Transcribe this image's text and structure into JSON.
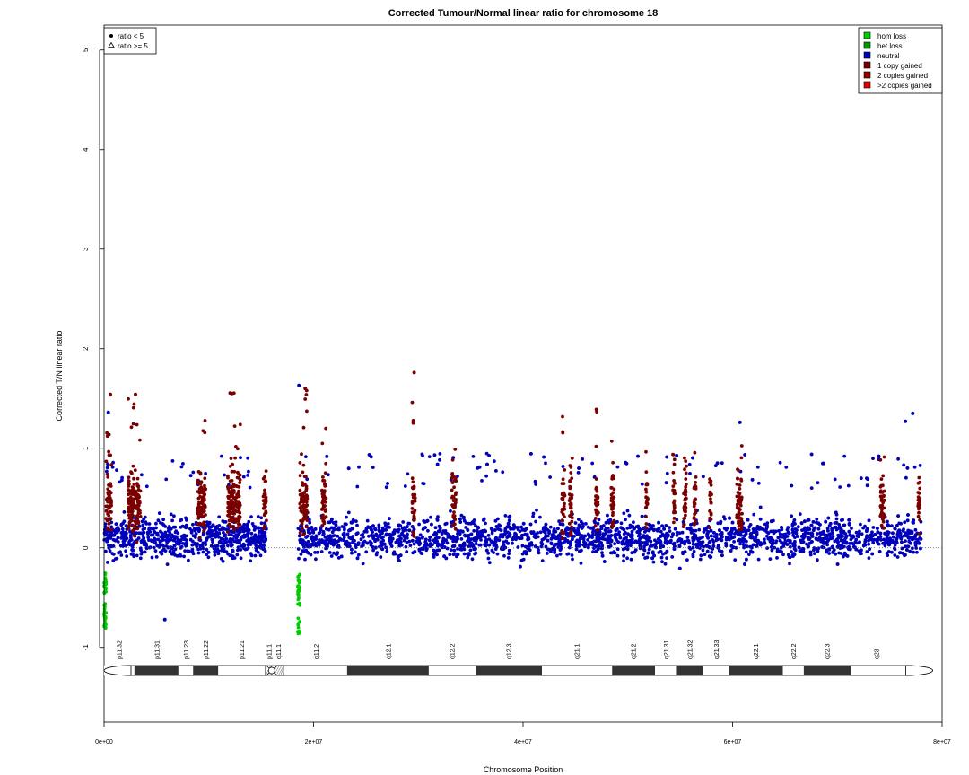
{
  "colors": {
    "hom_loss": "#00cc00",
    "het_loss": "#009900",
    "neutral": "#0000bb",
    "one_copy": "#7a0000",
    "two_copies": "#990000",
    "more_copies": "#dd0000",
    "band_dark": "#333333",
    "band_light": "#ffffff"
  },
  "chart_data": {
    "type": "scatter",
    "title": "Corrected Tumour/Normal linear ratio for chromosome  18",
    "xlabel": "Chromosome Position",
    "ylabel": "Corrected T/N linear ratio",
    "xlim": [
      0,
      80000000
    ],
    "ylim": [
      -1.75,
      5.25
    ],
    "x_ticks": [
      0,
      20000000,
      40000000,
      60000000,
      80000000
    ],
    "x_tick_labels": [
      "0e+00",
      "2e+07",
      "4e+07",
      "6e+07",
      "8e+07"
    ],
    "y_ticks": [
      -1,
      0,
      1,
      2,
      3,
      4,
      5
    ],
    "y_tick_labels": [
      "-1",
      "0",
      "1",
      "2",
      "3",
      "4",
      "5"
    ],
    "reference_line": 0,
    "legend_shape": {
      "position": "top-left",
      "entries": [
        {
          "symbol": "circle",
          "label": "ratio < 5"
        },
        {
          "symbol": "triangle",
          "label": "ratio >= 5"
        }
      ]
    },
    "legend_copy": {
      "position": "top-right",
      "entries": [
        {
          "label": "hom loss",
          "color_key": "hom_loss"
        },
        {
          "label": "het loss",
          "color_key": "het_loss"
        },
        {
          "label": "neutral",
          "color_key": "neutral"
        },
        {
          "label": "1 copy gained",
          "color_key": "one_copy"
        },
        {
          "label": "2 copies gained",
          "color_key": "two_copies"
        },
        {
          "label": ">2 copies gained",
          "color_key": "more_copies"
        }
      ]
    },
    "data_segments": [
      {
        "start": 0,
        "end": 15500000
      },
      {
        "start": 18500000,
        "end": 78000000
      }
    ],
    "neutral_range": {
      "low": -0.45,
      "high": 0.6,
      "dense_low": -0.3,
      "dense_high": 0.5
    },
    "gain_regions": [
      {
        "start": 200000,
        "end": 700000,
        "max": 1.3
      },
      {
        "start": 2300000,
        "end": 3500000,
        "max": 1.55
      },
      {
        "start": 8900000,
        "end": 9700000,
        "max": 1.4
      },
      {
        "start": 11800000,
        "end": 13000000,
        "max": 1.58
      },
      {
        "start": 15200000,
        "end": 15500000,
        "max": 0.8
      },
      {
        "start": 18700000,
        "end": 19400000,
        "max": 1.6
      },
      {
        "start": 20800000,
        "end": 21200000,
        "max": 1.33
      },
      {
        "start": 29400000,
        "end": 29700000,
        "max": 1.76
      },
      {
        "start": 33200000,
        "end": 33600000,
        "max": 1.0
      },
      {
        "start": 43700000,
        "end": 44000000,
        "max": 1.33
      },
      {
        "start": 44400000,
        "end": 44700000,
        "max": 1.1
      },
      {
        "start": 46900000,
        "end": 47200000,
        "max": 1.39
      },
      {
        "start": 48400000,
        "end": 48700000,
        "max": 1.1
      },
      {
        "start": 51700000,
        "end": 51900000,
        "max": 1.1
      },
      {
        "start": 54300000,
        "end": 54500000,
        "max": 1.0
      },
      {
        "start": 55300000,
        "end": 55600000,
        "max": 1.05
      },
      {
        "start": 56300000,
        "end": 56500000,
        "max": 1.0
      },
      {
        "start": 57800000,
        "end": 58000000,
        "max": 0.85
      },
      {
        "start": 60400000,
        "end": 60900000,
        "max": 1.1
      },
      {
        "start": 74100000,
        "end": 74500000,
        "max": 1.05
      },
      {
        "start": 77700000,
        "end": 77900000,
        "max": 0.8
      }
    ],
    "loss_regions": [
      {
        "start": 0,
        "end": 200000,
        "min": -0.82
      },
      {
        "start": 18500000,
        "end": 18700000,
        "min": -0.88
      }
    ],
    "outliers": [
      {
        "x": 600000,
        "y": 1.54,
        "color_key": "one_copy"
      },
      {
        "x": 3000000,
        "y": 1.54,
        "color_key": "one_copy"
      },
      {
        "x": 12200000,
        "y": 1.55,
        "color_key": "one_copy"
      },
      {
        "x": 19200000,
        "y": 1.6,
        "color_key": "one_copy"
      },
      {
        "x": 18600000,
        "y": 1.63,
        "color_key": "neutral"
      },
      {
        "x": 29600000,
        "y": 1.76,
        "color_key": "one_copy"
      },
      {
        "x": 47000000,
        "y": 1.39,
        "color_key": "one_copy"
      },
      {
        "x": 60700000,
        "y": 1.26,
        "color_key": "neutral"
      },
      {
        "x": 77200000,
        "y": 1.35,
        "color_key": "neutral"
      },
      {
        "x": 76500000,
        "y": 1.27,
        "color_key": "neutral"
      },
      {
        "x": 400000,
        "y": 1.36,
        "color_key": "neutral"
      },
      {
        "x": 5800000,
        "y": -0.72,
        "color_key": "neutral"
      }
    ],
    "ideogram": {
      "centromere_pos": 16000000,
      "p_arm": [
        {
          "name": "p11.32",
          "start": 0,
          "end": 2900000,
          "stain": "gneg"
        },
        {
          "name": "p11.31",
          "start": 2900000,
          "end": 7100000,
          "stain": "gpos"
        },
        {
          "name": "p11.23",
          "start": 7100000,
          "end": 8500000,
          "stain": "gneg"
        },
        {
          "name": "p11.22",
          "start": 8500000,
          "end": 10900000,
          "stain": "gpos"
        },
        {
          "name": "p11.21",
          "start": 10900000,
          "end": 15400000,
          "stain": "gneg"
        },
        {
          "name": "p11.1",
          "start": 15400000,
          "end": 16000000,
          "stain": "acen"
        }
      ],
      "q_arm": [
        {
          "name": "q11.1",
          "start": 16000000,
          "end": 17200000,
          "stain": "acen"
        },
        {
          "name": "q11.2",
          "start": 17200000,
          "end": 23200000,
          "stain": "gneg"
        },
        {
          "name": "q12.1",
          "start": 23200000,
          "end": 31000000,
          "stain": "gpos"
        },
        {
          "name": "q12.2",
          "start": 31000000,
          "end": 35500000,
          "stain": "gneg"
        },
        {
          "name": "q12.3",
          "start": 35500000,
          "end": 41800000,
          "stain": "gpos"
        },
        {
          "name": "q21.1",
          "start": 41800000,
          "end": 48500000,
          "stain": "gneg"
        },
        {
          "name": "q21.2",
          "start": 48500000,
          "end": 52600000,
          "stain": "gpos"
        },
        {
          "name": "q21.31",
          "start": 52600000,
          "end": 54600000,
          "stain": "gneg"
        },
        {
          "name": "q21.32",
          "start": 54600000,
          "end": 57200000,
          "stain": "gpos"
        },
        {
          "name": "q21.33",
          "start": 57200000,
          "end": 59700000,
          "stain": "gneg"
        },
        {
          "name": "q22.1",
          "start": 59700000,
          "end": 64800000,
          "stain": "gpos"
        },
        {
          "name": "q22.2",
          "start": 64800000,
          "end": 66800000,
          "stain": "gneg"
        },
        {
          "name": "q22.3",
          "start": 66800000,
          "end": 71300000,
          "stain": "gpos"
        },
        {
          "name": "q23",
          "start": 71300000,
          "end": 76100000,
          "stain": "gneg"
        }
      ],
      "label_positions": [
        {
          "name": "p11.32",
          "pos": 1400000
        },
        {
          "name": "p11.31",
          "pos": 5000000
        },
        {
          "name": "p11.23",
          "pos": 7800000
        },
        {
          "name": "p11.22",
          "pos": 9700000
        },
        {
          "name": "p11.21",
          "pos": 13100000
        },
        {
          "name": "p11.1",
          "pos": 15700000
        },
        {
          "name": "q11.1",
          "pos": 16600000
        },
        {
          "name": "q11.2",
          "pos": 20200000
        },
        {
          "name": "q12.1",
          "pos": 27100000
        },
        {
          "name": "q12.2",
          "pos": 33200000
        },
        {
          "name": "q12.3",
          "pos": 38600000
        },
        {
          "name": "q21.1",
          "pos": 45100000
        },
        {
          "name": "q21.2",
          "pos": 50500000
        },
        {
          "name": "q21.31",
          "pos": 53600000
        },
        {
          "name": "q21.32",
          "pos": 55900000
        },
        {
          "name": "q21.33",
          "pos": 58400000
        },
        {
          "name": "q22.1",
          "pos": 62200000
        },
        {
          "name": "q22.2",
          "pos": 65800000
        },
        {
          "name": "q22.3",
          "pos": 69000000
        },
        {
          "name": "q23",
          "pos": 73700000
        }
      ]
    }
  }
}
